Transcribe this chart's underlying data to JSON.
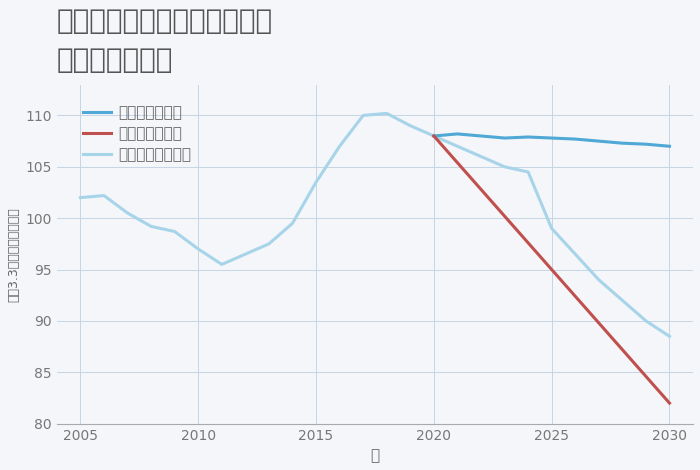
{
  "title": "兵庫県西宮市上ヶ原五番町の\n土地の価格推移",
  "xlabel": "年",
  "ylabel": "坪（3.3㎡）単価（万円）",
  "ylim": [
    80,
    113
  ],
  "yticks": [
    80,
    85,
    90,
    95,
    100,
    105,
    110
  ],
  "background_color": "#f4f6f9",
  "plot_bg_color": "#f4f6f9",
  "grid_color": "#c5d5e5",
  "good_scenario": {
    "label": "グッドシナリオ",
    "color": "#4fa8d5",
    "years": [
      2020,
      2021,
      2022,
      2023,
      2024,
      2025,
      2026,
      2027,
      2028,
      2029,
      2030
    ],
    "values": [
      108.0,
      108.2,
      108.0,
      107.8,
      107.9,
      107.8,
      107.7,
      107.5,
      107.3,
      107.2,
      107.0
    ]
  },
  "bad_scenario": {
    "label": "バッドシナリオ",
    "color": "#c0504d",
    "years": [
      2020,
      2030
    ],
    "values": [
      108.0,
      82.0
    ]
  },
  "normal_scenario": {
    "label": "ノーマルシナリオ",
    "color": "#a8d4ea",
    "years": [
      2005,
      2006,
      2007,
      2008,
      2009,
      2010,
      2011,
      2012,
      2013,
      2014,
      2015,
      2016,
      2017,
      2018,
      2019,
      2020,
      2021,
      2022,
      2023,
      2024,
      2025,
      2026,
      2027,
      2028,
      2029,
      2030
    ],
    "values": [
      102.0,
      102.2,
      100.5,
      99.2,
      98.7,
      97.0,
      95.5,
      96.5,
      97.5,
      99.5,
      103.5,
      107.0,
      110.0,
      110.2,
      109.0,
      108.0,
      107.0,
      106.0,
      105.0,
      104.5,
      99.0,
      96.5,
      94.0,
      92.0,
      90.0,
      88.5
    ]
  },
  "xticks": [
    2005,
    2010,
    2015,
    2020,
    2025,
    2030
  ],
  "title_fontsize": 20,
  "axis_fontsize": 11,
  "legend_fontsize": 11,
  "line_width": 2.2
}
